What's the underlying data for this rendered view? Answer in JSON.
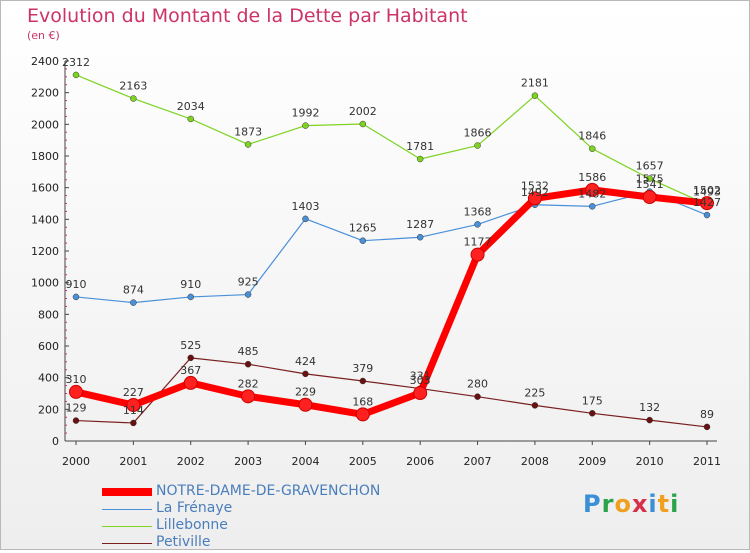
{
  "title": "Evolution du Montant de la Dette par Habitant",
  "unit": "(en €)",
  "logo": {
    "text": "Proxiti",
    "letter_colors": [
      "#3a8fd6",
      "#2aa34a",
      "#f0a020",
      "#d6304a",
      "#3a8fd6",
      "#f0a020",
      "#2aa34a"
    ]
  },
  "chart_data": {
    "type": "line",
    "categories": [
      "2000",
      "2001",
      "2002",
      "2003",
      "2004",
      "2005",
      "2006",
      "2007",
      "2008",
      "2009",
      "2010",
      "2011"
    ],
    "ylim": [
      0,
      2400
    ],
    "yticks": [
      0,
      200,
      400,
      600,
      800,
      1000,
      1200,
      1400,
      1600,
      1800,
      2000,
      2200,
      2400
    ],
    "grid": false,
    "legend_position": "bottom-left",
    "series": [
      {
        "name": "NOTRE-DAME-DE-GRAVENCHON",
        "color": "#ff0000",
        "point_color": "#cc0000",
        "bold": true,
        "values": [
          310,
          227,
          367,
          282,
          229,
          168,
          303,
          1177,
          1532,
          1586,
          1541,
          1502
        ]
      },
      {
        "name": "La Frénaye",
        "color": "#4a90d9",
        "point_color": "#4a90d9",
        "values": [
          910,
          874,
          910,
          925,
          1403,
          1265,
          1287,
          1368,
          1492,
          1482,
          1575,
          1427
        ]
      },
      {
        "name": "Lillebonne",
        "color": "#7ed321",
        "point_color": "#7ed321",
        "values": [
          2312,
          2163,
          2034,
          1873,
          1992,
          2002,
          1781,
          1866,
          2181,
          1846,
          1657,
          1493
        ]
      },
      {
        "name": "Petiville",
        "color": "#7a1f1f",
        "point_color": "#6b1010",
        "values": [
          129,
          114,
          525,
          485,
          424,
          379,
          331,
          280,
          225,
          175,
          132,
          89
        ]
      }
    ]
  }
}
